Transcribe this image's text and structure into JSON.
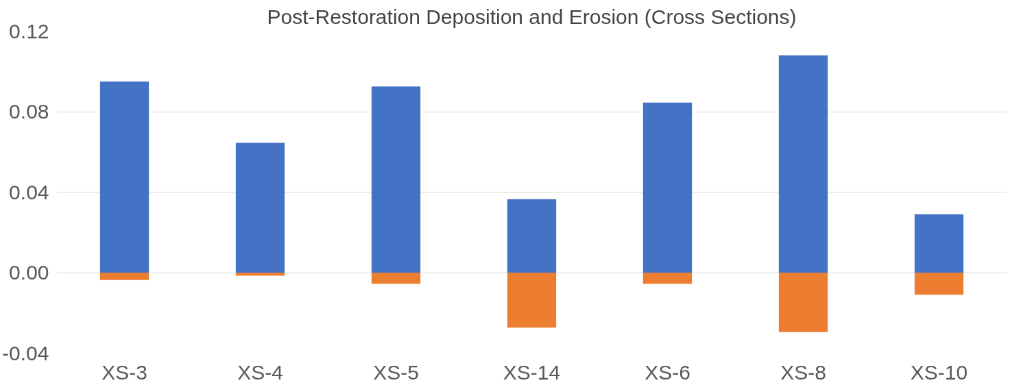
{
  "chart_data": {
    "type": "bar",
    "title": "Post-Restoration Deposition and Erosion (Cross Sections)",
    "categories": [
      "XS-3",
      "XS-4",
      "XS-5",
      "XS-14",
      "XS-6",
      "XS-8",
      "XS-10"
    ],
    "series": [
      {
        "color": "#4472c4",
        "values": [
          0.095,
          0.0645,
          0.0925,
          0.0365,
          0.0845,
          0.108,
          0.029
        ]
      },
      {
        "color": "#ed7d31",
        "values": [
          -0.0037,
          -0.0015,
          -0.0055,
          -0.0273,
          -0.0055,
          -0.0295,
          -0.011
        ]
      }
    ],
    "stacked": true,
    "ylim": [
      -0.04,
      0.12
    ],
    "yticks": [
      {
        "value": -0.04,
        "label": "-0.04"
      },
      {
        "value": 0,
        "label": "0.00"
      },
      {
        "value": 0.04,
        "label": "0.04"
      },
      {
        "value": 0.08,
        "label": "0.08"
      },
      {
        "value": 0.12,
        "label": "0.12"
      }
    ],
    "grid": "y"
  }
}
